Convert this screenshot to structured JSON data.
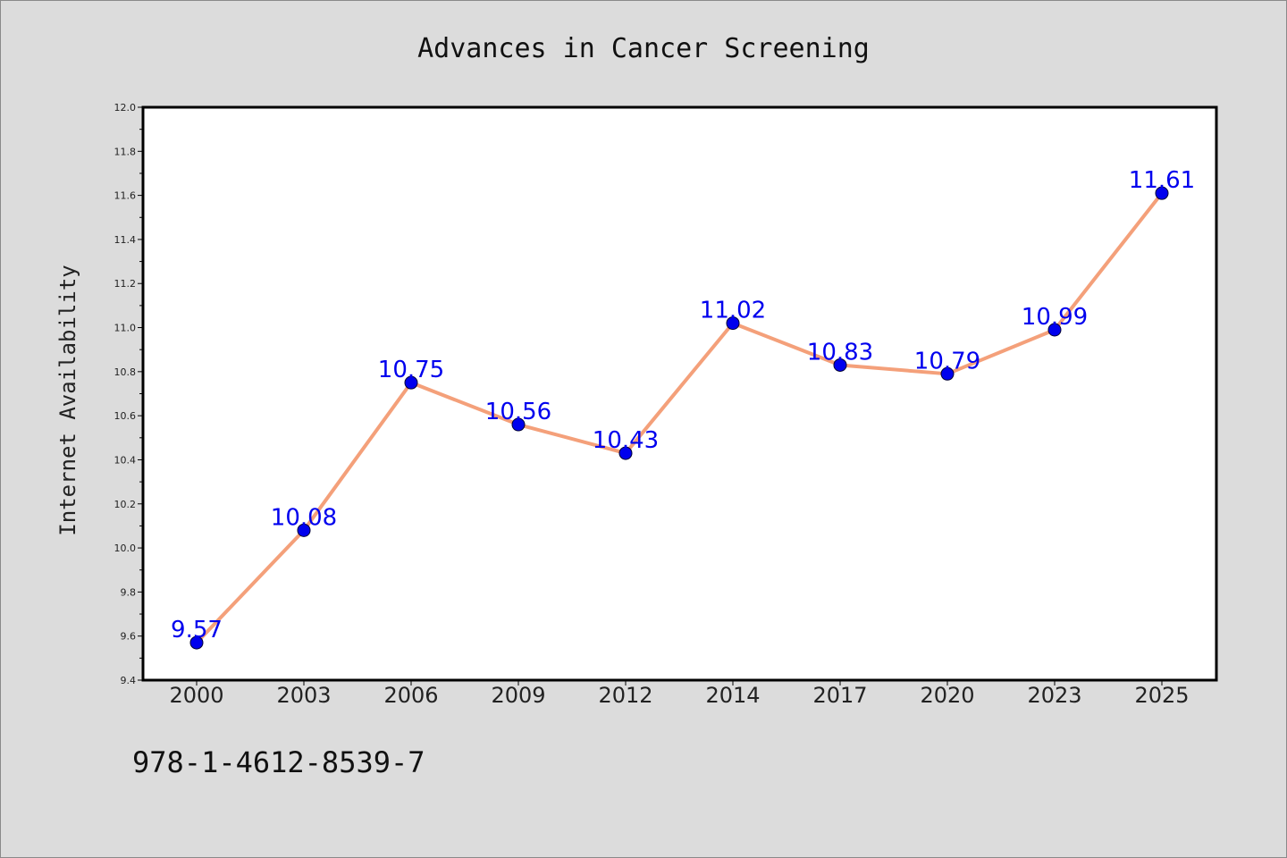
{
  "chart_data": {
    "type": "line",
    "title": "Advances in Cancer Screening",
    "xlabel": "",
    "ylabel": "Internet Availability",
    "categories": [
      "2000",
      "2003",
      "2006",
      "2009",
      "2012",
      "2014",
      "2017",
      "2020",
      "2023",
      "2025"
    ],
    "series": [
      {
        "values": [
          9.57,
          10.08,
          10.75,
          10.56,
          10.43,
          11.02,
          10.83,
          10.79,
          10.99,
          11.61
        ]
      }
    ],
    "data_labels": [
      "9.57",
      "10.08",
      "10.75",
      "10.56",
      "10.43",
      "11.02",
      "10.83",
      "10.79",
      "10.99",
      "11.61"
    ],
    "ylim": [
      9.4,
      12.0
    ],
    "yticks": [
      "9.4",
      "9.6",
      "9.8",
      "10.0",
      "10.2",
      "10.4",
      "10.6",
      "10.8",
      "11.0",
      "11.2",
      "11.4",
      "11.6",
      "11.8",
      "12.0"
    ],
    "grid": false,
    "legend": "none",
    "colors": {
      "line": "#f4a07a",
      "marker": "#0000ee",
      "label": "#0000ee",
      "background": "#dcdcdc",
      "plot_area": "#ffffff"
    }
  },
  "footnote": "978-1-4612-8539-7"
}
